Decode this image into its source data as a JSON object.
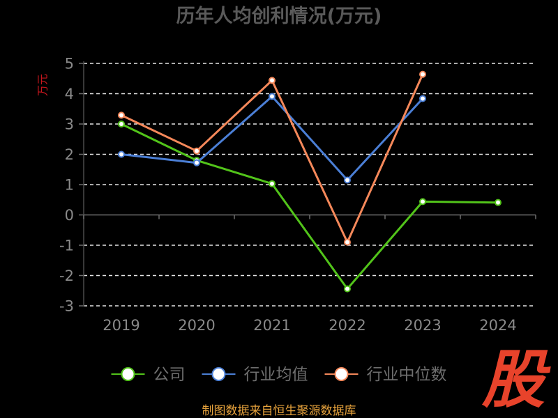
{
  "chart_data": {
    "type": "line",
    "title": "历年人均创利情况(万元)",
    "xlabel": "",
    "ylabel": "万元",
    "categories": [
      "2019",
      "2020",
      "2021",
      "2022",
      "2023",
      "2024"
    ],
    "ylim": [
      -3,
      5
    ],
    "yticks": [
      5,
      4,
      3,
      2,
      1,
      0,
      -1,
      -2,
      -3
    ],
    "grid": true,
    "legend": "bottom",
    "series": [
      {
        "name": "公司",
        "color": "#52c41a",
        "values": [
          3.0,
          1.8,
          1.03,
          -2.44,
          0.44,
          0.41
        ]
      },
      {
        "name": "行业均值",
        "color": "#4b7fd6",
        "values": [
          2.0,
          1.72,
          3.91,
          1.15,
          3.84,
          null
        ]
      },
      {
        "name": "行业中位数",
        "color": "#f5885a",
        "values": [
          3.29,
          2.11,
          4.44,
          -0.9,
          4.64,
          null
        ]
      }
    ]
  },
  "footer": "制图数据来自恒生聚源数据库",
  "logo_text": "股",
  "colors": {
    "background": "#000000",
    "title": "#5a5a5a",
    "axis_text": "#8a8a8a",
    "axis_line": "#6e6e6e",
    "grid": "#e6e6e6",
    "ylabel": "#c8161d",
    "footer": "#e6a23c",
    "logo": "#e8432b"
  }
}
